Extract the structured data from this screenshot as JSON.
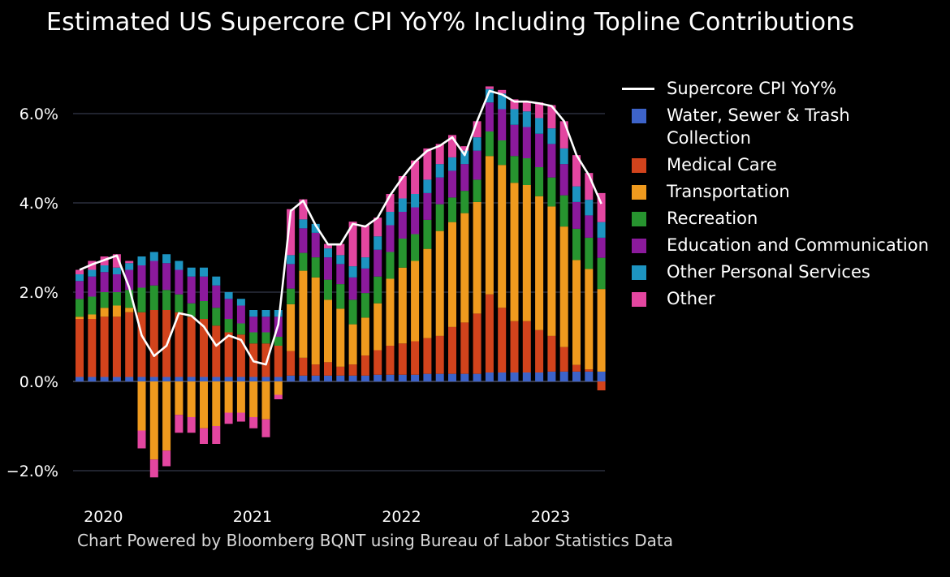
{
  "chart_data": {
    "type": "bar",
    "title": "Estimated US Supercore CPI YoY% Including Topline Contributions",
    "source": "Chart Powered by Bloomberg BQNT using Bureau of Labor Statistics Data",
    "ylim": [
      -2.5,
      7.5
    ],
    "yticks": [
      {
        "value": 6,
        "label": "6.0%"
      },
      {
        "value": 4,
        "label": "4.0%"
      },
      {
        "value": 2,
        "label": "2.0%"
      },
      {
        "value": 0,
        "label": "0.0%"
      },
      {
        "value": -2,
        "label": "−2.0%"
      }
    ],
    "xticks": [
      {
        "index": 1,
        "label": "2020"
      },
      {
        "index": 13,
        "label": "2021"
      },
      {
        "index": 25,
        "label": "2022"
      },
      {
        "index": 37,
        "label": "2023"
      }
    ],
    "line": {
      "name": "Supercore CPI YoY%",
      "color": "#ffffff",
      "values": [
        2.5,
        2.62,
        2.72,
        2.82,
        2.1,
        1.03,
        0.57,
        0.8,
        1.53,
        1.47,
        1.23,
        0.8,
        1.03,
        0.93,
        0.45,
        0.38,
        1.28,
        3.82,
        4.05,
        3.5,
        3.07,
        3.07,
        3.53,
        3.47,
        3.67,
        4.17,
        4.57,
        4.92,
        5.17,
        5.28,
        5.47,
        5.07,
        5.83,
        6.51,
        6.43,
        6.27,
        6.27,
        6.23,
        6.17,
        5.83,
        5.07,
        4.62,
        3.98
      ]
    },
    "series": [
      {
        "name": "Water, Sewer & Trash Collection",
        "color": "#3d63c9",
        "values": [
          0.1,
          0.1,
          0.1,
          0.1,
          0.1,
          0.1,
          0.1,
          0.1,
          0.1,
          0.1,
          0.1,
          0.1,
          0.1,
          0.1,
          0.1,
          0.1,
          0.1,
          0.13,
          0.13,
          0.13,
          0.13,
          0.13,
          0.13,
          0.13,
          0.15,
          0.15,
          0.15,
          0.15,
          0.17,
          0.17,
          0.17,
          0.17,
          0.17,
          0.2,
          0.2,
          0.2,
          0.2,
          0.2,
          0.22,
          0.22,
          0.22,
          0.22,
          0.22
        ]
      },
      {
        "name": "Medical Care",
        "color": "#d2431c",
        "values": [
          1.3,
          1.3,
          1.35,
          1.35,
          1.45,
          1.45,
          1.5,
          1.5,
          1.45,
          1.35,
          1.3,
          1.15,
          1.0,
          0.95,
          0.75,
          0.75,
          0.7,
          0.55,
          0.4,
          0.25,
          0.3,
          0.2,
          0.25,
          0.45,
          0.55,
          0.65,
          0.7,
          0.75,
          0.8,
          0.85,
          1.05,
          1.15,
          1.35,
          1.75,
          1.45,
          1.15,
          1.15,
          0.95,
          0.8,
          0.55,
          0.15,
          0.05,
          -0.2
        ]
      },
      {
        "name": "Transportation",
        "color": "#ef9a1e",
        "values": [
          0.05,
          0.1,
          0.2,
          0.25,
          0.1,
          -1.1,
          -1.75,
          -1.55,
          -0.75,
          -0.8,
          -1.05,
          -1.0,
          -0.7,
          -0.7,
          -0.8,
          -0.85,
          -0.3,
          1.05,
          1.95,
          1.95,
          1.4,
          1.3,
          0.9,
          0.85,
          1.05,
          1.5,
          1.7,
          1.8,
          2.0,
          2.35,
          2.35,
          2.45,
          2.5,
          3.1,
          3.2,
          3.1,
          3.05,
          3.0,
          2.9,
          2.7,
          2.35,
          2.25,
          1.85
        ]
      },
      {
        "name": "Recreation",
        "color": "#27942f",
        "values": [
          0.4,
          0.4,
          0.35,
          0.3,
          0.4,
          0.55,
          0.55,
          0.45,
          0.4,
          0.3,
          0.4,
          0.4,
          0.3,
          0.25,
          0.25,
          0.25,
          0.2,
          0.35,
          0.4,
          0.45,
          0.45,
          0.55,
          0.55,
          0.55,
          0.6,
          0.6,
          0.65,
          0.6,
          0.65,
          0.6,
          0.55,
          0.5,
          0.5,
          0.55,
          0.55,
          0.6,
          0.6,
          0.65,
          0.65,
          0.7,
          0.7,
          0.7,
          0.7
        ]
      },
      {
        "name": "Education and Communication",
        "color": "#8b1a9c",
        "values": [
          0.4,
          0.45,
          0.45,
          0.4,
          0.45,
          0.5,
          0.55,
          0.6,
          0.55,
          0.6,
          0.55,
          0.5,
          0.45,
          0.4,
          0.35,
          0.35,
          0.45,
          0.55,
          0.55,
          0.55,
          0.5,
          0.45,
          0.5,
          0.55,
          0.6,
          0.6,
          0.6,
          0.6,
          0.6,
          0.6,
          0.6,
          0.6,
          0.65,
          0.65,
          0.7,
          0.7,
          0.7,
          0.75,
          0.75,
          0.7,
          0.6,
          0.5,
          0.45
        ]
      },
      {
        "name": "Other Personal Services",
        "color": "#1d94c1",
        "values": [
          0.15,
          0.15,
          0.15,
          0.15,
          0.15,
          0.2,
          0.2,
          0.2,
          0.2,
          0.2,
          0.2,
          0.2,
          0.15,
          0.15,
          0.15,
          0.15,
          0.15,
          0.2,
          0.2,
          0.2,
          0.2,
          0.2,
          0.25,
          0.25,
          0.3,
          0.3,
          0.3,
          0.3,
          0.3,
          0.3,
          0.3,
          0.3,
          0.3,
          0.3,
          0.35,
          0.35,
          0.35,
          0.35,
          0.35,
          0.35,
          0.35,
          0.35,
          0.35
        ]
      },
      {
        "name": "Other",
        "color": "#e346a0",
        "values": [
          0.1,
          0.2,
          0.2,
          0.3,
          0.05,
          -0.4,
          -0.4,
          -0.35,
          -0.4,
          -0.35,
          -0.35,
          -0.4,
          -0.25,
          -0.2,
          -0.25,
          -0.4,
          -0.1,
          1.03,
          0.45,
          0.0,
          0.1,
          0.25,
          1.0,
          0.72,
          0.42,
          0.4,
          0.5,
          0.75,
          0.7,
          0.45,
          0.5,
          0.1,
          0.36,
          0.06,
          0.08,
          0.22,
          0.22,
          0.35,
          0.52,
          0.61,
          0.7,
          0.6,
          0.65
        ]
      }
    ]
  }
}
